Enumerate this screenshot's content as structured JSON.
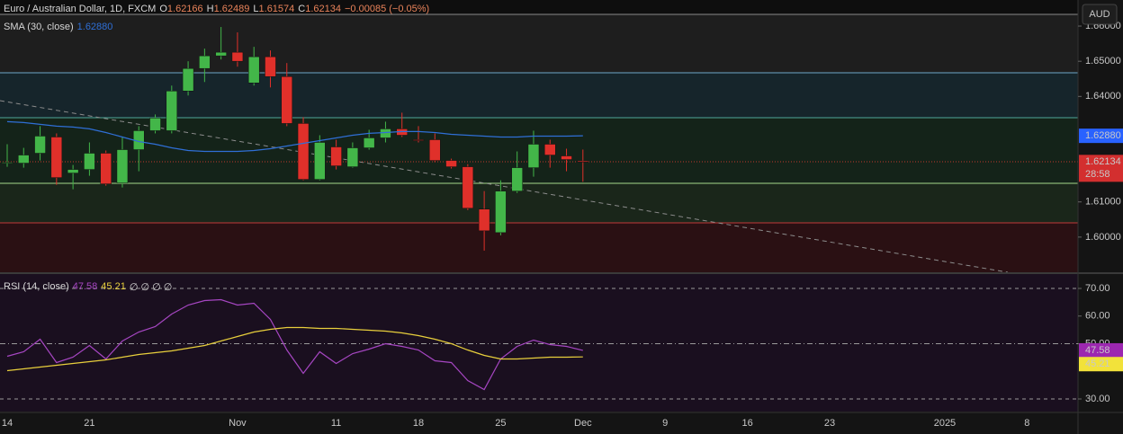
{
  "chart_data": [
    {
      "type": "candlestick",
      "title": "Euro / Australian Dollar, 1D, FXCM",
      "ohlc_labels": [
        "O",
        "H",
        "L",
        "C"
      ],
      "change": "−0.00085 (−0.05%)",
      "currency": "AUD",
      "countdown": "28:58",
      "up_color": "#43b649",
      "down_color": "#e0302a",
      "categories": [
        "14",
        null,
        null,
        null,
        null,
        "21",
        null,
        null,
        null,
        null,
        null,
        null,
        null,
        null,
        "Nov",
        null,
        null,
        null,
        null,
        null,
        "11",
        null,
        null,
        null,
        null,
        "18",
        null,
        null,
        null,
        null,
        "25",
        null,
        null,
        null,
        null,
        "Dec",
        null,
        null,
        null,
        null,
        "9",
        null,
        null,
        null,
        null,
        "16",
        null,
        null,
        null,
        null,
        "23",
        null,
        null,
        null,
        null,
        null,
        null,
        "2025",
        null,
        null,
        null,
        null,
        "8",
        null
      ],
      "open": [
        1.62103,
        1.62103,
        1.62385,
        1.62846,
        1.61821,
        1.61923,
        1.62385,
        1.61538,
        1.62487,
        1.63026,
        1.63026,
        1.64154,
        1.64795,
        1.65154,
        1.65256,
        1.64385,
        1.65128,
        1.64564,
        1.63231,
        1.61641,
        1.62564,
        1.62,
        1.62538,
        1.62821,
        1.63077,
        1.62769,
        1.62769,
        1.62179,
        1.62,
        1.60795,
        1.60128,
        1.61308,
        1.61974,
        1.62641,
        1.62308,
        1.62166,
        null,
        null,
        null,
        null,
        null,
        null,
        null,
        null,
        null,
        null,
        null,
        null,
        null,
        null,
        null,
        null,
        null,
        null,
        null,
        null,
        null,
        null,
        null,
        null,
        null,
        null,
        null,
        null
      ],
      "high": [
        1.62641,
        1.62538,
        1.63154,
        1.62949,
        1.62051,
        1.62692,
        1.62462,
        1.62846,
        1.63154,
        1.63487,
        1.64308,
        1.65,
        1.65359,
        1.65974,
        1.65821,
        1.6541,
        1.65308,
        1.64949,
        1.6341,
        1.62897,
        1.62769,
        1.62692,
        1.63051,
        1.63282,
        1.63538,
        1.63154,
        1.62949,
        1.62231,
        1.62077,
        1.61308,
        1.61615,
        1.62436,
        1.63026,
        1.62769,
        1.62513,
        1.62489,
        null,
        null,
        null,
        null,
        null,
        null,
        null,
        null,
        null,
        null,
        null,
        null,
        null,
        null,
        null,
        null,
        null,
        null,
        null,
        null,
        null,
        null,
        null,
        null,
        null,
        null,
        null,
        null
      ],
      "low": [
        1.62,
        1.61974,
        1.62179,
        1.61487,
        1.61359,
        1.61744,
        1.61462,
        1.6141,
        1.61872,
        1.62949,
        1.62949,
        1.64026,
        1.6441,
        1.65051,
        1.64846,
        1.64308,
        1.64256,
        1.63154,
        1.61615,
        1.61615,
        1.61923,
        1.61974,
        1.62487,
        1.62692,
        1.62846,
        1.62692,
        1.62128,
        1.61949,
        1.60769,
        1.59615,
        1.60051,
        1.61256,
        1.61718,
        1.61974,
        1.61872,
        1.61574,
        null,
        null,
        null,
        null,
        null,
        null,
        null,
        null,
        null,
        null,
        null,
        null,
        null,
        null,
        null,
        null,
        null,
        null,
        null,
        null,
        null,
        null,
        null,
        null,
        null,
        null,
        null,
        null
      ],
      "close": [
        1.62128,
        1.62333,
        1.62872,
        1.61692,
        1.61923,
        1.62385,
        1.61513,
        1.62487,
        1.63026,
        1.63385,
        1.64154,
        1.64795,
        1.65154,
        1.65256,
        1.65,
        1.65128,
        1.64564,
        1.63231,
        1.61641,
        1.62692,
        1.62026,
        1.62538,
        1.62821,
        1.63077,
        1.62897,
        1.62744,
        1.62179,
        1.62,
        1.60821,
        1.60179,
        1.61308,
        1.61974,
        1.62641,
        1.62333,
        1.62205,
        1.62134,
        null,
        null,
        null,
        null,
        null,
        null,
        null,
        null,
        null,
        null,
        null,
        null,
        null,
        null,
        null,
        null,
        null,
        null,
        null,
        null,
        null,
        null,
        null,
        null,
        null,
        null,
        null,
        null
      ],
      "series": [
        {
          "name": "SMA (30, close)",
          "color": "#2f6fd6",
          "last_label": "1.62880",
          "values": [
            1.63282,
            1.63256,
            1.63205,
            1.63154,
            1.63128,
            1.63077,
            1.62974,
            1.62846,
            1.62718,
            1.62641,
            1.62538,
            1.62462,
            1.62436,
            1.62436,
            1.62436,
            1.62462,
            1.62513,
            1.6259,
            1.62667,
            1.62744,
            1.62821,
            1.62897,
            1.62949,
            1.62974,
            1.63,
            1.63,
            1.62974,
            1.62923,
            1.62897,
            1.62872,
            1.62846,
            1.62846,
            1.62872,
            1.62872,
            1.62872,
            1.6288,
            null,
            null,
            null,
            null,
            null,
            null,
            null,
            null,
            null,
            null,
            null,
            null,
            null,
            null,
            null,
            null,
            null,
            null,
            null,
            null,
            null,
            null,
            null,
            null,
            null,
            null,
            null,
            null
          ]
        }
      ],
      "ylim": [
        1.59,
        1.66333
      ],
      "yticks": [
        {
          "value": 1.66,
          "label": "1.66000"
        },
        {
          "value": 1.65,
          "label": "1.65000"
        },
        {
          "value": 1.64,
          "label": "1.64000"
        },
        {
          "value": 1.61,
          "label": "1.61000"
        },
        {
          "value": 1.6,
          "label": "1.60000"
        }
      ]
    },
    {
      "type": "line",
      "title": "RSI (14, close)",
      "symbols": "∅ ∅ ∅ ∅",
      "series": [
        {
          "color": "#a646c2",
          "values": [
            45.45,
            47.07,
            51.63,
            43.17,
            45.12,
            49.35,
            44.47,
            50.98,
            54.23,
            56.18,
            60.73,
            63.98,
            65.61,
            65.93,
            63.98,
            64.63,
            58.78,
            47.72,
            39.27,
            47.07,
            42.85,
            46.42,
            48.05,
            50,
            49.02,
            47.72,
            43.82,
            43.17,
            36.67,
            33.41,
            44.47,
            49.02,
            51.3,
            49.67,
            49.02,
            47.58,
            null,
            null,
            null,
            null,
            null,
            null,
            null,
            null,
            null,
            null,
            null,
            null,
            null,
            null,
            null,
            null,
            null,
            null,
            null,
            null,
            null,
            null,
            null,
            null,
            null,
            null,
            null,
            null
          ]
        },
        {
          "color": "#e8cf3c",
          "values": [
            40.24,
            40.89,
            41.54,
            42.2,
            42.85,
            43.5,
            44.15,
            45.12,
            46.1,
            46.75,
            47.4,
            48.37,
            49.35,
            50.98,
            52.6,
            54.23,
            55.2,
            55.85,
            55.85,
            55.53,
            55.53,
            55.2,
            54.88,
            54.55,
            53.9,
            52.93,
            51.63,
            50,
            47.72,
            45.77,
            44.47,
            44.47,
            44.8,
            45.12,
            45.12,
            45.21,
            null,
            null,
            null,
            null,
            null,
            null,
            null,
            null,
            null,
            null,
            null,
            null,
            null,
            null,
            null,
            null,
            null,
            null,
            null,
            null,
            null,
            null,
            null,
            null,
            null,
            null,
            null,
            null
          ]
        }
      ],
      "ylim": [
        25.45,
        75.2
      ],
      "yticks": [
        {
          "value": 70,
          "label": "70.00"
        },
        {
          "value": 60,
          "label": "60.00"
        },
        {
          "value": 50,
          "label": "50.00"
        },
        {
          "value": 30,
          "label": "30.00"
        }
      ]
    }
  ]
}
